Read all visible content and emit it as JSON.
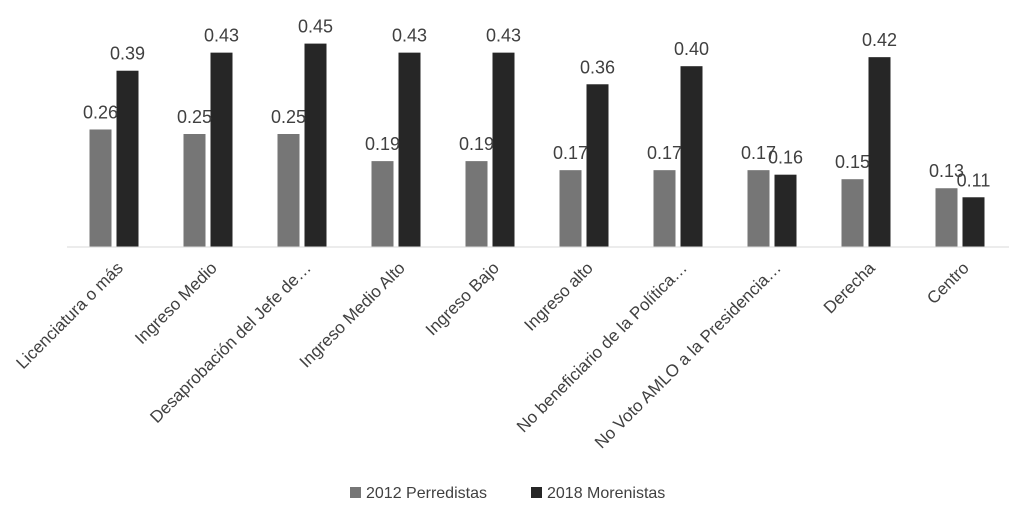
{
  "chart_data": {
    "type": "bar",
    "title": "",
    "xlabel": "",
    "ylabel": "",
    "ylim": [
      0,
      0.45
    ],
    "grid": false,
    "legend_position": "bottom",
    "categories": [
      "Licenciatura o más",
      "Ingreso Medio",
      "Desaprobación del Jefe de…",
      "Ingreso Medio Alto",
      "Ingreso Bajo",
      "Ingreso alto",
      "No beneficiario de la Política…",
      "No Voto AMLO a la Presidencia…",
      "Derecha",
      "Centro"
    ],
    "series": [
      {
        "name": "2012 Perredistas",
        "color": "#767676",
        "values": [
          0.26,
          0.25,
          0.25,
          0.19,
          0.19,
          0.17,
          0.17,
          0.17,
          0.15,
          0.13
        ],
        "labels": [
          "0.26",
          "0.25",
          "0.25",
          "0.19",
          "0.19",
          "0.17",
          "0.17",
          "0.17",
          "0.15",
          "0.13"
        ]
      },
      {
        "name": "2018 Morenistas",
        "color": "#262626",
        "values": [
          0.39,
          0.43,
          0.45,
          0.43,
          0.43,
          0.36,
          0.4,
          0.16,
          0.42,
          0.11
        ],
        "labels": [
          "0.39",
          "0.43",
          "0.45",
          "0.43",
          "0.43",
          "0.36",
          "0.40",
          "0.16",
          "0.42",
          "0.11"
        ]
      }
    ]
  }
}
